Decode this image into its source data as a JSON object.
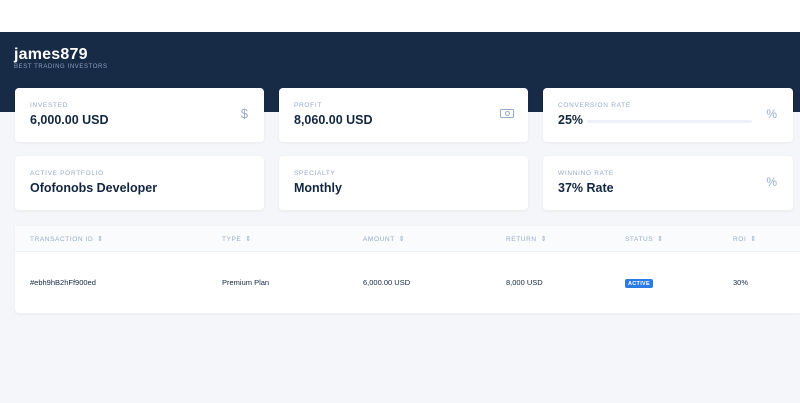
{
  "header": {
    "username": "james879",
    "tagline": "BEST TRADING INVESTORS"
  },
  "stats": {
    "invested": {
      "label": "INVESTED",
      "value": "6,000.00 USD",
      "icon": "dollar-icon"
    },
    "profit": {
      "label": "PROFIT",
      "value": "8,060.00 USD",
      "icon": "cash-icon"
    },
    "conversion": {
      "label": "CONVERSION RATE",
      "value": "25%",
      "progress": 0,
      "icon": "percent-icon"
    },
    "portfolio": {
      "label": "ACTIVE PORTFOLIO",
      "value": "Ofofonobs Developer"
    },
    "specialty": {
      "label": "SPECIALTY",
      "value": "Monthly"
    },
    "winning": {
      "label": "WINNING RATE",
      "value": "37% Rate",
      "icon": "percent-icon"
    }
  },
  "table": {
    "columns": [
      "TRANSACTION ID",
      "TYPE",
      "AMOUNT",
      "RETURN",
      "STATUS",
      "ROI"
    ],
    "rows": [
      {
        "transaction_id": "#ebh9hB2hFf900ed",
        "type": "Premium Plan",
        "amount": "6,000.00 USD",
        "return": "8,000 USD",
        "status": "ACTIVE",
        "roi": "30%"
      }
    ]
  },
  "colors": {
    "header_bg": "#172a46",
    "accent": "#2c7be5",
    "muted": "#95aac9"
  }
}
